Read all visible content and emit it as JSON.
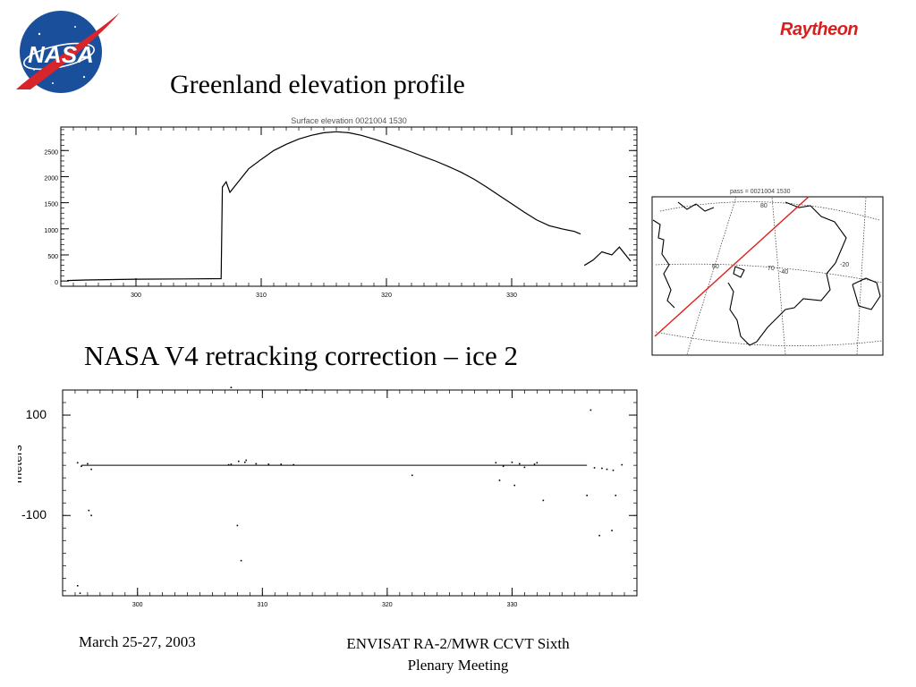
{
  "slide": {
    "title1": "Greenland elevation profile",
    "title2": "NASA V4 retracking correction – ice 2",
    "footer_date": "March 25-27, 2003",
    "footer_meeting_line1": "ENVISAT RA-2/MWR CCVT Sixth",
    "footer_meeting_line2": "Plenary Meeting"
  },
  "logos": {
    "nasa_text": "NASA",
    "raytheon_text": "Raytheon",
    "nasa_blue": "#1a4f9c",
    "nasa_red": "#d7252b",
    "raytheon_red": "#d81e1e"
  },
  "map": {
    "title": "pass = 0021004 1530",
    "lat_labels": [
      "80",
      "70",
      "60"
    ],
    "lon_labels": [
      "-40",
      "-20",
      "-40"
    ],
    "track_color": "#e0201c"
  },
  "chart_data": [
    {
      "type": "line",
      "title": "Surface elevation 0021004 1530",
      "xlabel": "",
      "ylabel": "",
      "xlim": [
        294,
        340
      ],
      "ylim": [
        -100,
        2950
      ],
      "xticks": [
        "300",
        "310",
        "320",
        "330"
      ],
      "yticks": [
        "0",
        "500",
        "1000",
        "1500",
        "2000",
        "2500"
      ],
      "series": [
        {
          "x": [
            294.5,
            296,
            300,
            304,
            306.8,
            306.9,
            307.2,
            307.5,
            308,
            309,
            310,
            311,
            312,
            313,
            314,
            315,
            316,
            317,
            318,
            319,
            320,
            321,
            322,
            323,
            324,
            325,
            326,
            327,
            328,
            329,
            330,
            331,
            332,
            333,
            334,
            335,
            335.5
          ],
          "y": [
            10,
            20,
            35,
            40,
            45,
            1800,
            1900,
            1700,
            1850,
            2150,
            2330,
            2500,
            2620,
            2720,
            2790,
            2840,
            2860,
            2840,
            2790,
            2720,
            2640,
            2560,
            2470,
            2380,
            2290,
            2190,
            2080,
            1950,
            1800,
            1640,
            1480,
            1320,
            1170,
            1060,
            1000,
            950,
            900
          ]
        },
        {
          "x": [
            335.8,
            336.5,
            337.2,
            338,
            338.6,
            339.5
          ],
          "y": [
            300,
            400,
            560,
            500,
            650,
            380
          ]
        }
      ]
    },
    {
      "type": "scatter",
      "title": "",
      "xlabel": "",
      "ylabel": "meters",
      "xlim": [
        294,
        340
      ],
      "ylim": [
        -260,
        150
      ],
      "xticks": [
        "300",
        "310",
        "320",
        "330"
      ],
      "yticks": [
        "100",
        "-100"
      ],
      "series": [
        {
          "x": [
            295.2,
            295.5,
            296,
            296.3,
            307.3,
            307.5,
            308.1,
            308.6,
            308.7,
            309.5,
            310.5,
            311.5,
            312.5,
            328.7,
            329.3,
            330,
            330.6,
            331,
            331.8,
            332,
            336.6,
            337.2,
            337.6,
            338.1,
            338.8
          ],
          "y": [
            5,
            -2,
            3,
            -8,
            1,
            2,
            8,
            6,
            10,
            3,
            2,
            2,
            1,
            5,
            -2,
            6,
            3,
            -4,
            2,
            5,
            -5,
            -6,
            -8,
            -10,
            1
          ]
        },
        {
          "x": [
            295.2,
            295.4,
            296.1,
            296.3,
            307.5,
            308,
            308.3,
            313.5,
            322,
            329,
            330.2,
            332.5,
            336,
            336.3,
            337,
            338,
            338.3
          ],
          "y": [
            -240,
            -255,
            -90,
            -100,
            155,
            -120,
            -190,
            150,
            -20,
            -30,
            -40,
            -70,
            -60,
            110,
            -140,
            -130,
            -60
          ]
        }
      ]
    }
  ]
}
